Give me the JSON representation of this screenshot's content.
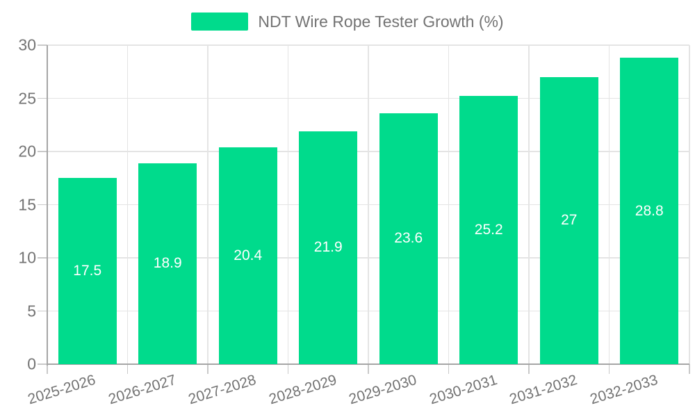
{
  "legend": {
    "label": "NDT Wire Rope Tester Growth (%)"
  },
  "colors": {
    "bar": "#00DB8C",
    "grid": "#E4E4E4",
    "axis": "#A5A5A5",
    "tick_mark": "#C9C9C9",
    "text": "#737373",
    "value_label": "#FFFFFF",
    "background": "#FFFFFF"
  },
  "chart_data": {
    "type": "bar",
    "title": "NDT Wire Rope Tester Growth (%)",
    "categories": [
      "2025-2026",
      "2026-2027",
      "2027-2028",
      "2028-2029",
      "2029-2030",
      "2030-2031",
      "2031-2032",
      "2032-2033"
    ],
    "series": [
      {
        "name": "NDT Wire Rope Tester Growth (%)",
        "values": [
          17.5,
          18.9,
          20.4,
          21.9,
          23.6,
          25.2,
          27,
          28.8
        ]
      }
    ],
    "xlabel": "",
    "ylabel": "",
    "ylim": [
      0,
      30
    ],
    "yticks": [
      0,
      5,
      10,
      15,
      20,
      25,
      30
    ],
    "grid": true,
    "legend_position": "top-center",
    "value_labels_position": "inside-center",
    "x_label_rotation_deg": -17
  }
}
